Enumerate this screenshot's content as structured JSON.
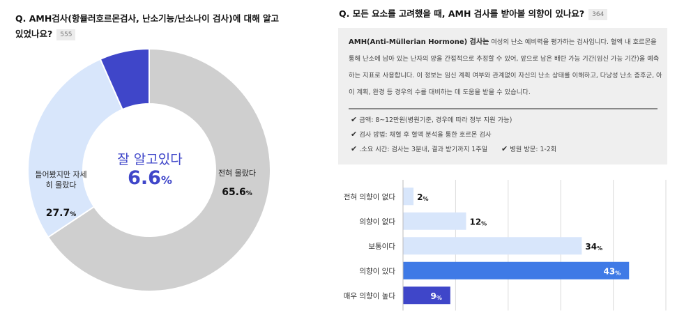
{
  "q1": {
    "title": "Q. AMH검사(항뮬러호르몬검사, 난소기능/난소나이 검사)에 대해 알고 있었나요?",
    "count": "555"
  },
  "donut": {
    "center_label": "잘 알고있다",
    "center_value": "6.6",
    "segments": [
      {
        "label": "전혀 몰랐다",
        "value": "65.6",
        "color": "#cfcfcf"
      },
      {
        "label": "들어봤지만 자세히 몰랐다",
        "value": "27.7",
        "color": "#d8e6fb"
      },
      {
        "label": "잘 알고있다",
        "value": "6.6",
        "color": "#3f46c9"
      }
    ]
  },
  "q2": {
    "title": "Q. 모든 요소를 고려했을 때, AMH 검사를 받아볼 의향이  있나요?",
    "count": "364"
  },
  "info": {
    "term": "AMH(Anti-Müllerian Hormone) 검사는",
    "description": " 여성의 난소 예비력을 평가하는 검사입니다. 혈액 내 호르몬을 통해 난소에 남아 있는 난자의 양을 간접적으로 추정할 수 있어, 앞으로 남은 배란 가능 기간(임신 가능 기간)을 예측하는 지표로 사용합니다. 이 정보는 임신 계획 여부와 관계없이 자신의 난소 상태를 이해하고, 다낭성 난소 증후군, 아이 계획, 완경 등 경우의 수를 대비하는 데 도움을 받을 수 있습니다.",
    "check_mark": "✔",
    "bullets": [
      "금액: 8~12만원(병원기준, 경우에 따라 정부 지원 가능)",
      "검사 방법: 채혈 후 혈액 분석을 통한 호르몬 검사",
      ".소요 시간: 검사는 3분내, 결과 받기까지 1주일",
      "병원 방문: 1-2회"
    ]
  },
  "chart_data": [
    {
      "type": "pie",
      "title": "Q. AMH검사(항뮬러호르몬검사, 난소기능/난소나이 검사)에 대해 알고 있었나요?",
      "categories": [
        "전혀 몰랐다",
        "들어봤지만 자세히 몰랐다",
        "잘 알고있다"
      ],
      "values": [
        65.6,
        27.7,
        6.6
      ],
      "unit": "%",
      "colors": [
        "#cfcfcf",
        "#d8e6fb",
        "#3f46c9"
      ]
    },
    {
      "type": "bar",
      "orientation": "horizontal",
      "title": "Q. 모든 요소를 고려했을 때, AMH 검사를 받아볼 의향이  있나요?",
      "categories": [
        "전혀 의향이 없다",
        "의향이 없다",
        "보통이다",
        "의향이 있다",
        "매우 의향이 높다"
      ],
      "values": [
        2,
        12,
        34,
        43,
        9
      ],
      "unit": "%",
      "xlim": [
        0,
        50
      ],
      "grid": true,
      "colors": [
        "#d8e6fb",
        "#d8e6fb",
        "#d8e6fb",
        "#3f7ae6",
        "#3f46c9"
      ]
    }
  ]
}
